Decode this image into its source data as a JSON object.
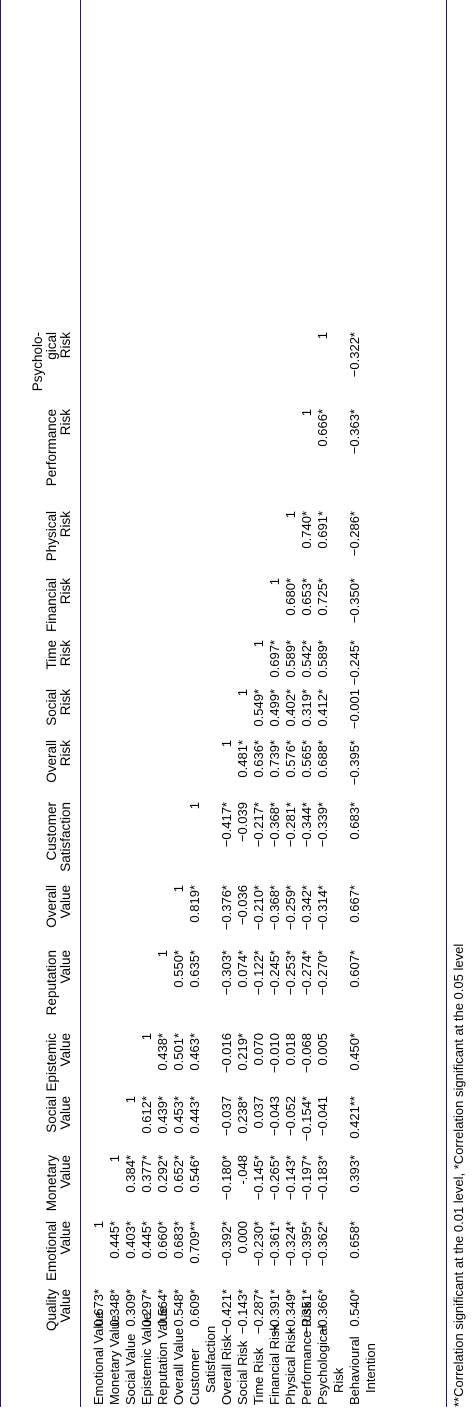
{
  "columns": [
    [
      "Quality",
      "Value"
    ],
    [
      "Emotional",
      "Value"
    ],
    [
      "Monetary",
      "Value"
    ],
    [
      "Social",
      "Value"
    ],
    [
      "Epistemic",
      "Value"
    ],
    [
      "Reputation",
      "Value"
    ],
    [
      "Overall",
      "Value"
    ],
    [
      "Customer",
      "Satisfaction"
    ],
    [
      "Overall",
      "Risk"
    ],
    [
      "Social",
      "Risk"
    ],
    [
      "Time",
      "Risk"
    ],
    [
      "Financial",
      "Risk"
    ],
    [
      "Physical",
      "Risk"
    ],
    [
      "Performance",
      "Risk"
    ],
    [
      "Psycholo-",
      "gical",
      "Risk"
    ]
  ],
  "rows": [
    {
      "label": [
        "Emotional Value"
      ],
      "values": [
        "0.673*",
        "1"
      ]
    },
    {
      "label": [
        "Monetary Value"
      ],
      "values": [
        "0.348*",
        "0.445*",
        "1"
      ]
    },
    {
      "label": [
        "Social Value"
      ],
      "values": [
        "0.309*",
        "0.403*",
        "0.384*",
        "1"
      ]
    },
    {
      "label": [
        "Epistemic Value"
      ],
      "values": [
        "0.297*",
        "0.445*",
        "0.377*",
        "0.612*",
        "1"
      ]
    },
    {
      "label": [
        "Reputation Value"
      ],
      "values": [
        "0.564*",
        "0.660*",
        "0.292*",
        "0.439*",
        "0.438*",
        "1"
      ]
    },
    {
      "label": [
        "Overall Value"
      ],
      "values": [
        "0.548*",
        "0.683*",
        "0.652*",
        "0.453*",
        "0.501*",
        "0.550*",
        "1"
      ]
    },
    {
      "label": [
        "Customer",
        "Satisfaction"
      ],
      "values": [
        "0.609*",
        "0.709**",
        "0.546*",
        "0.443*",
        "0.463*",
        "0.635*",
        "0.819*",
        "1"
      ]
    },
    {
      "label": [
        "Overall Risk"
      ],
      "values": [
        "−0.421*",
        "−0.392*",
        "−0.180*",
        "−0.037",
        "−0.016",
        "−0.303*",
        "−0.376*",
        "−0.417*",
        "1"
      ]
    },
    {
      "label": [
        "Social Risk"
      ],
      "values": [
        "−0.143*",
        "0.000",
        "-.048",
        "0.238*",
        "0.219*",
        "0.074*",
        "−0.036",
        "−0.039",
        "0.481*",
        "1"
      ]
    },
    {
      "label": [
        "Time Risk"
      ],
      "values": [
        "−0.287*",
        "−0.230*",
        "−0.145*",
        "0.037",
        "0.070",
        "−0.122*",
        "−0.210*",
        "−0.217*",
        "0.636*",
        "0.549*",
        "1"
      ]
    },
    {
      "label": [
        "Financial Risk"
      ],
      "values": [
        "−0.391*",
        "−0.361*",
        "−0.265*",
        "−0.043",
        "−0.010",
        "−0.245*",
        "−0.368*",
        "−0.368*",
        "0.739*",
        "0.499*",
        "0.697*",
        "1"
      ]
    },
    {
      "label": [
        "Physical Risk"
      ],
      "values": [
        "−0.349*",
        "−0.324*",
        "−0.143*",
        "−0.052",
        "0.018",
        "−0.253*",
        "−0.259*",
        "−0.281*",
        "0.576*",
        "0.402*",
        "0.589*",
        "0.680*",
        "1"
      ]
    },
    {
      "label": [
        "Performance Risk"
      ],
      "values": [
        "−0.351*",
        "−0.395*",
        "−0.197*",
        "−0.154*",
        "−0.068",
        "−0.274*",
        "−0.342*",
        "−0.344*",
        "0.565*",
        "0.319*",
        "0.542*",
        "0.653*",
        "0.740*",
        "1"
      ]
    },
    {
      "label": [
        "Psychological",
        "Risk"
      ],
      "values": [
        "−0.366*",
        "−0.362*",
        "−0.183*",
        "−0.041",
        "0.005",
        "−0.270*",
        "−0.314*",
        "−0.339*",
        "0.688*",
        "0.412*",
        "0.589*",
        "0.725*",
        "0.691*",
        "0.666*",
        "1"
      ]
    },
    {
      "label": [
        "Behavioural",
        "Intention"
      ],
      "values": [
        "0.540*",
        "0.658*",
        "0.393*",
        "0.421**",
        "0.450*",
        "0.607*",
        "0.667*",
        "0.683*",
        "−0.395*",
        "−0.001",
        "−0.245*",
        "−0.350*",
        "−0.286*",
        "−0.363*",
        "−0.322*"
      ]
    }
  ],
  "footnote": "**Correlation significant at the 0.01 level, *Correlation significant at the 0.05 level"
}
